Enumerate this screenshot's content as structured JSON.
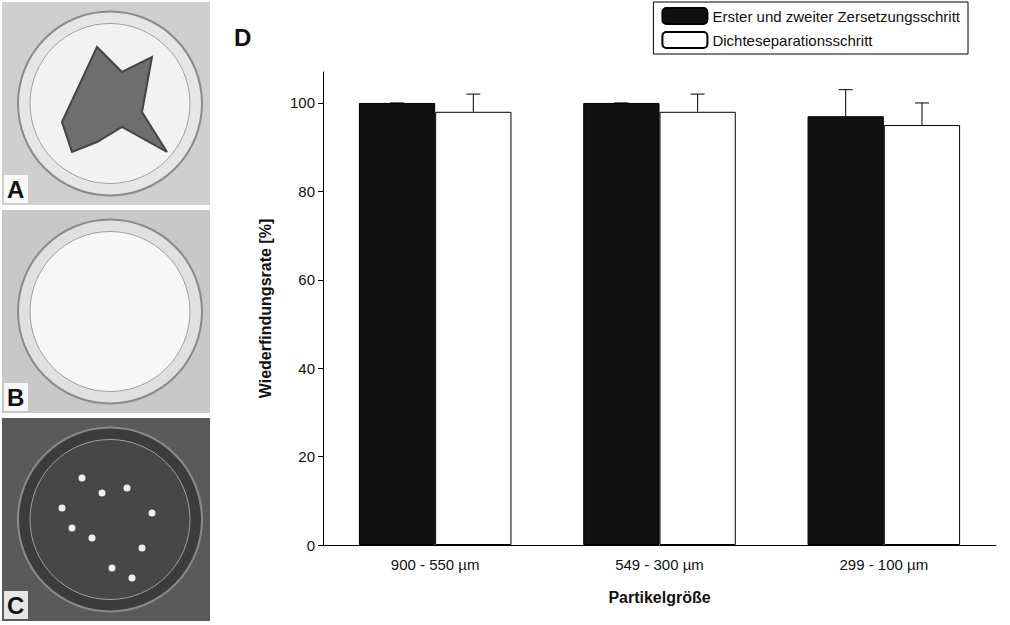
{
  "chart_data": {
    "type": "bar",
    "annotations": [
      "D"
    ],
    "categories": [
      "900 - 550 µm",
      "549 - 300 µm",
      "299 - 100 µm"
    ],
    "series": [
      {
        "name": "Erster und zweiter Zersetzungsschritt",
        "color": "#111111",
        "values": [
          100,
          100,
          97
        ],
        "errors": [
          0,
          0,
          6
        ]
      },
      {
        "name": "Dichteseparationsschritt",
        "color": "#ffffff",
        "values": [
          98,
          98,
          95
        ],
        "errors": [
          4,
          4,
          5
        ]
      }
    ],
    "xlabel": "Partikelgröße",
    "ylabel": "Wiederfindungsrate [%]",
    "ylim": [
      0,
      107
    ],
    "yticks": [
      0,
      20,
      40,
      60,
      80,
      100
    ],
    "grid": false,
    "legend": "top-right"
  },
  "photo_panels": [
    {
      "label": "A"
    },
    {
      "label": "B"
    },
    {
      "label": "C"
    }
  ]
}
